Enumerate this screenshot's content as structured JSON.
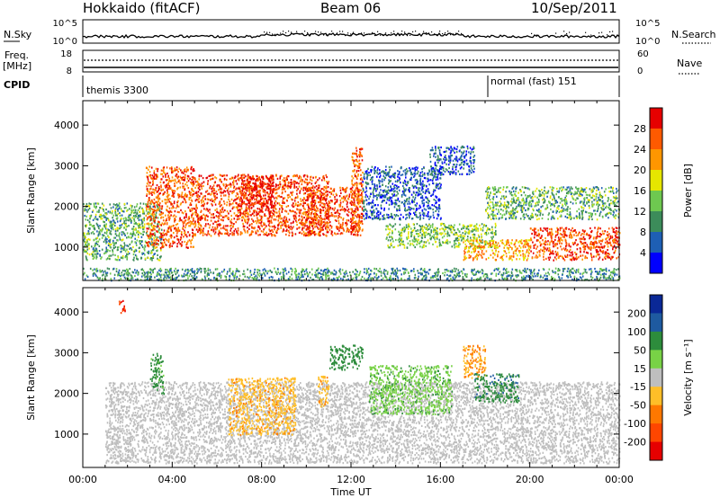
{
  "header": {
    "station": "Hokkaido (fitACF)",
    "beam": "Beam 06",
    "date": "10/Sep/2011"
  },
  "strip": {
    "nsky_label": "N.Sky",
    "nsky_ticks": [
      "10^5",
      "10^0"
    ],
    "nsearch_label": "N.Search",
    "nsearch_ticks": [
      "10^5",
      "10^0"
    ],
    "freq_label": "Freq.",
    "freq_unit": "[MHz]",
    "freq_ticks": [
      "18",
      "8"
    ],
    "nave_label": "Nave",
    "nave_ticks": [
      "60",
      "0"
    ],
    "cpid_label": "CPID",
    "cpid_modes": [
      {
        "name": "themis 3300",
        "start_hour": 0
      },
      {
        "name": "normal (fast) 151",
        "start_hour": 18
      }
    ]
  },
  "xaxis": {
    "label": "Time UT",
    "ticks": [
      "00:00",
      "04:00",
      "08:00",
      "12:00",
      "16:00",
      "20:00",
      "00:00"
    ]
  },
  "panels": {
    "power": {
      "ylabel": "Slant Range [km]",
      "yticks": [
        "4000",
        "3000",
        "2000",
        "1000"
      ],
      "cbar_label": "Power [dB]",
      "cbar_ticks": [
        "28",
        "24",
        "20",
        "16",
        "12",
        "8",
        "4"
      ]
    },
    "velocity": {
      "ylabel": "Slant Range [km]",
      "yticks": [
        "4000",
        "3000",
        "2000",
        "1000"
      ],
      "cbar_label": "Velocity [m s⁻¹]",
      "cbar_ticks": [
        "200",
        "100",
        "50",
        "15",
        "-15",
        "-50",
        "-100",
        "-200"
      ]
    }
  },
  "chart_data": [
    {
      "type": "heatmap",
      "title": "Hokkaido (fitACF)",
      "subtitle": "Beam 06",
      "date": "10/Sep/2011",
      "quantity": "Power [dB]",
      "xlabel": "Time UT",
      "ylabel": "Slant Range [km]",
      "xlim_hours": [
        0,
        24
      ],
      "x_ticks": [
        "00:00",
        "04:00",
        "08:00",
        "12:00",
        "16:00",
        "20:00",
        "00:00"
      ],
      "ylim_km": [
        180,
        4600
      ],
      "y_ticks": [
        1000,
        2000,
        3000,
        4000
      ],
      "colorbar_ticks": [
        4,
        8,
        12,
        16,
        20,
        24,
        28
      ],
      "colorbar_colors": [
        "#0000ff",
        "#1e5fb4",
        "#3c8c5a",
        "#6ec850",
        "#e6e600",
        "#ff9600",
        "#ff5a00",
        "#e60000"
      ],
      "gray_scatter_color": "#bebebe",
      "echo_regions": [
        {
          "hours": [
            0.0,
            3.5
          ],
          "range_km": [
            700,
            2100
          ],
          "power_db": 12
        },
        {
          "hours": [
            2.8,
            5.0
          ],
          "range_km": [
            1000,
            3000
          ],
          "power_db": 26
        },
        {
          "hours": [
            5.0,
            11.0
          ],
          "range_km": [
            1300,
            2800
          ],
          "power_db": 27
        },
        {
          "hours": [
            7.0,
            8.5
          ],
          "range_km": [
            1800,
            2800
          ],
          "power_db": 30
        },
        {
          "hours": [
            10.0,
            12.5
          ],
          "range_km": [
            1300,
            2500
          ],
          "power_db": 27
        },
        {
          "hours": [
            12.0,
            12.5
          ],
          "range_km": [
            1400,
            3500
          ],
          "power_db": 26
        },
        {
          "hours": [
            12.5,
            16.0
          ],
          "range_km": [
            1700,
            3000
          ],
          "power_db": 6
        },
        {
          "hours": [
            13.5,
            18.5
          ],
          "range_km": [
            1000,
            1600
          ],
          "power_db": 14
        },
        {
          "hours": [
            15.5,
            17.5
          ],
          "range_km": [
            2800,
            3500
          ],
          "power_db": 6
        },
        {
          "hours": [
            17.0,
            20.0
          ],
          "range_km": [
            700,
            1200
          ],
          "power_db": 22
        },
        {
          "hours": [
            20.0,
            24.0
          ],
          "range_km": [
            700,
            1500
          ],
          "power_db": 27
        },
        {
          "hours": [
            18.0,
            24.0
          ],
          "range_km": [
            1700,
            2500
          ],
          "power_db": 12
        },
        {
          "hours": [
            0.0,
            24.0
          ],
          "range_km": [
            200,
            500
          ],
          "power_db": 10
        }
      ]
    },
    {
      "type": "heatmap",
      "title": "Hokkaido (fitACF)",
      "subtitle": "Beam 06",
      "date": "10/Sep/2011",
      "quantity": "Velocity [m s⁻¹]",
      "xlabel": "Time UT",
      "ylabel": "Slant Range [km]",
      "xlim_hours": [
        0,
        24
      ],
      "x_ticks": [
        "00:00",
        "04:00",
        "08:00",
        "12:00",
        "16:00",
        "20:00",
        "00:00"
      ],
      "ylim_km": [
        180,
        4600
      ],
      "y_ticks": [
        1000,
        2000,
        3000,
        4000
      ],
      "colorbar_ticks": [
        200,
        100,
        50,
        15,
        -15,
        -50,
        -100,
        -200
      ],
      "colorbar_colors": [
        "#0a2896",
        "#1e5aa0",
        "#2d8c3c",
        "#78d246",
        "#bebebe",
        "#ffbe28",
        "#ff7800",
        "#ff4600",
        "#e60000"
      ],
      "echo_regions": [
        {
          "hours": [
            1.0,
            24.0
          ],
          "range_km": [
            300,
            2300
          ],
          "velocity_ms": 0
        },
        {
          "hours": [
            3.0,
            3.6
          ],
          "range_km": [
            2000,
            3000
          ],
          "velocity_ms": 60
        },
        {
          "hours": [
            6.5,
            9.5
          ],
          "range_km": [
            1000,
            2400
          ],
          "velocity_ms": -40
        },
        {
          "hours": [
            10.5,
            11.0
          ],
          "range_km": [
            1700,
            2500
          ],
          "velocity_ms": -40
        },
        {
          "hours": [
            11.0,
            12.5
          ],
          "range_km": [
            2600,
            3200
          ],
          "velocity_ms": 70
        },
        {
          "hours": [
            12.8,
            16.5
          ],
          "range_km": [
            1500,
            2700
          ],
          "velocity_ms": 40
        },
        {
          "hours": [
            17.0,
            18.0
          ],
          "range_km": [
            2400,
            3200
          ],
          "velocity_ms": -50
        },
        {
          "hours": [
            17.5,
            19.5
          ],
          "range_km": [
            1800,
            2500
          ],
          "velocity_ms": 90
        },
        {
          "hours": [
            1.6,
            1.9
          ],
          "range_km": [
            4000,
            4300
          ],
          "velocity_ms": -200
        }
      ]
    }
  ]
}
